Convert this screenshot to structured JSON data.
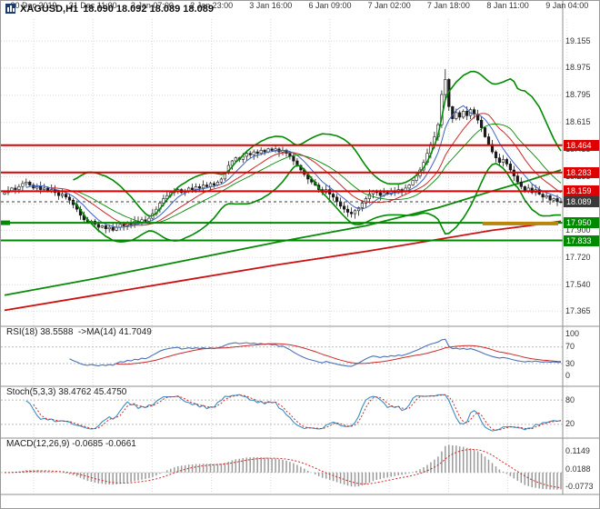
{
  "window": {
    "title_symbol": "XAGUSD,H1",
    "quotes": "18.090 18.092 18.089 18.089"
  },
  "chart_data": {
    "type": "candlestick",
    "symbol": "XAGUSD",
    "timeframe": "H1",
    "x_labels": [
      "30 Dec 2019",
      "31 Dec 11:00",
      "2 Jan 07:00",
      "2 Jan 23:00",
      "3 Jan 16:00",
      "6 Jan 09:00",
      "7 Jan 02:00",
      "7 Jan 18:00",
      "8 Jan 11:00",
      "9 Jan 04:00"
    ],
    "y_axis": {
      "min": 17.3,
      "max": 19.3,
      "ticks": [
        19.155,
        18.975,
        18.795,
        18.615,
        18.435,
        18.255,
        18.075,
        17.9,
        17.72,
        17.54,
        17.365
      ]
    },
    "closes": [
      18.15,
      18.16,
      18.18,
      18.17,
      18.19,
      18.21,
      18.22,
      18.2,
      18.18,
      18.19,
      18.17,
      18.18,
      18.16,
      18.17,
      18.15,
      18.13,
      18.14,
      18.12,
      18.1,
      18.07,
      18.04,
      18.0,
      17.97,
      17.95,
      17.96,
      17.94,
      17.92,
      17.93,
      17.91,
      17.92,
      17.9,
      17.92,
      17.94,
      17.93,
      17.95,
      17.94,
      17.96,
      17.95,
      17.97,
      17.96,
      17.98,
      18.01,
      18.04,
      18.08,
      18.11,
      18.13,
      18.15,
      18.16,
      18.17,
      18.15,
      18.16,
      18.18,
      18.17,
      18.19,
      18.18,
      18.2,
      18.19,
      18.21,
      18.2,
      18.22,
      18.24,
      18.28,
      18.33,
      18.36,
      18.38,
      18.37,
      18.39,
      18.41,
      18.4,
      18.42,
      18.41,
      18.43,
      18.42,
      18.44,
      18.43,
      18.44,
      18.42,
      18.43,
      18.41,
      18.39,
      18.36,
      18.33,
      18.3,
      18.27,
      18.24,
      18.22,
      18.2,
      18.17,
      18.15,
      18.17,
      18.14,
      18.12,
      18.09,
      18.06,
      18.04,
      18.02,
      18.01,
      18.03,
      18.05,
      18.08,
      18.11,
      18.14,
      18.16,
      18.15,
      18.13,
      18.15,
      18.14,
      18.16,
      18.15,
      18.17,
      18.16,
      18.18,
      18.2,
      18.23,
      18.26,
      18.3,
      18.35,
      18.41,
      18.47,
      18.52,
      18.6,
      18.8,
      18.9,
      18.72,
      18.64,
      18.68,
      18.65,
      18.69,
      18.66,
      18.7,
      18.67,
      18.63,
      18.58,
      18.52,
      18.47,
      18.42,
      18.38,
      18.35,
      18.37,
      18.34,
      18.3,
      18.26,
      18.22,
      18.19,
      18.16,
      18.18,
      18.15,
      18.17,
      18.14,
      18.12,
      18.13,
      18.1,
      18.11,
      18.09,
      18.089
    ],
    "levels": [
      {
        "price": 18.464,
        "label": "18.464",
        "kind": "resistance"
      },
      {
        "price": 18.283,
        "label": "18.283",
        "kind": "resistance"
      },
      {
        "price": 18.159,
        "label": "18.159",
        "kind": "resistance"
      },
      {
        "price": 18.089,
        "label": "18.089",
        "kind": "current"
      },
      {
        "price": 17.95,
        "label": "17.950",
        "kind": "support"
      },
      {
        "price": 17.833,
        "label": "17.833",
        "kind": "support"
      }
    ],
    "gold_segment": {
      "price": 17.945,
      "from_frac": 0.86,
      "to_frac": 0.995
    },
    "left_marker": {
      "price": 17.95
    },
    "overlays": {
      "trend_green": [
        [
          0,
          17.47
        ],
        [
          25,
          17.58
        ],
        [
          50,
          17.7
        ],
        [
          75,
          17.82
        ],
        [
          100,
          17.93
        ],
        [
          120,
          18.05
        ],
        [
          135,
          18.16
        ],
        [
          145,
          18.23
        ],
        [
          154,
          18.3
        ]
      ],
      "trend_red": [
        [
          0,
          17.37
        ],
        [
          25,
          17.47
        ],
        [
          50,
          17.57
        ],
        [
          75,
          17.67
        ],
        [
          100,
          17.76
        ],
        [
          120,
          17.84
        ],
        [
          135,
          17.9
        ],
        [
          145,
          17.93
        ],
        [
          154,
          17.96
        ]
      ]
    },
    "indicators": {
      "rsi": {
        "label": "RSI(18) 38.5588  ->MA(14) 41.7049",
        "period": 18,
        "ma_period": 14,
        "ticks": [
          100,
          70,
          30,
          0
        ],
        "level_lines": [
          70,
          30
        ]
      },
      "stoch": {
        "label": "Stoch(5,3,3) 38.4762 45.4750",
        "k": 5,
        "slowing": 3,
        "d": 3,
        "ticks": [
          80,
          20
        ],
        "level_lines": [
          80,
          20
        ]
      },
      "macd": {
        "label": "MACD(12,26,9) -0.0685 -0.0661",
        "fast": 12,
        "slow": 26,
        "signal": 9,
        "ticks": [
          0.1149,
          0.0188,
          -0.0773
        ]
      }
    }
  },
  "colors": {
    "up_candle": "#ffffff",
    "down_candle": "#1a1a1a",
    "candle_outline": "#1a1a1a",
    "resistance": "#dd0000",
    "support": "#008a00",
    "current_price": "#3a3a3a",
    "bollinger": "#008a00",
    "ma_fast": "#3b62c4",
    "ma_mid": "#cc2a2a",
    "trend_green": "#0a8a0a",
    "trend_red": "#cc1111",
    "rsi_line": "#4a72b8",
    "rsi_ma": "#cc2a2a",
    "stoch_k": "#3b8ec4",
    "stoch_d": "#cc2a2a",
    "macd_hist": "#9a9a9a",
    "macd_signal": "#cc2a2a",
    "grid": "#d9d9d9",
    "separator": "#8f8f8f",
    "gold": "#b8860b",
    "icon": "#1f3a6e"
  }
}
